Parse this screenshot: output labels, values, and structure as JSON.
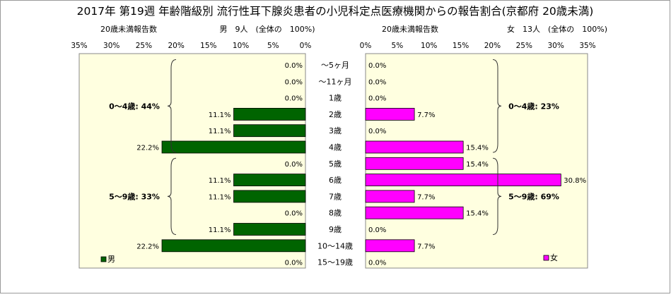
{
  "title": "2017年 第19週 年齢階級別 流行性耳下腺炎患者の小児科定点医療機関からの報告割合(京都府 20歳未満)",
  "chart_data": [
    {
      "type": "bar",
      "orientation": "horizontal",
      "direction": "right-to-left",
      "subtitle_left": "20歳未満報告数",
      "subtitle_right": "男　9人　(全体の　100%)",
      "categories": [
        "～5ヶ月",
        "～11ヶ月",
        "1歳",
        "2歳",
        "3歳",
        "4歳",
        "5歳",
        "6歳",
        "7歳",
        "8歳",
        "9歳",
        "10～14歳",
        "15～19歳"
      ],
      "series": [
        {
          "name": "男",
          "color": "#006400",
          "values": [
            0.0,
            0.0,
            0.0,
            11.1,
            11.1,
            22.2,
            0.0,
            11.1,
            11.1,
            0.0,
            11.1,
            22.2,
            0.0
          ],
          "labels": [
            "0.0%",
            "0.0%",
            "0.0%",
            "11.1%",
            "11.1%",
            "22.2%",
            "0.0%",
            "11.1%",
            "11.1%",
            "0.0%",
            "11.1%",
            "22.2%",
            "0.0%"
          ]
        }
      ],
      "xlim": [
        0,
        35
      ],
      "ticks": [
        "0%",
        "5%",
        "10%",
        "15%",
        "20%",
        "25%",
        "30%",
        "35%"
      ],
      "tick_values": [
        0,
        5,
        10,
        15,
        20,
        25,
        30,
        35
      ],
      "annotations": [
        {
          "text": "0～4歳: 44%",
          "from": 0,
          "to": 5
        },
        {
          "text": "5～9歳: 33%",
          "from": 6,
          "to": 10
        }
      ],
      "plot_background": "#ffffe0"
    },
    {
      "type": "bar",
      "orientation": "horizontal",
      "direction": "left-to-right",
      "subtitle_left": "20歳未満報告数",
      "subtitle_right": "女　13人　(全体の　100%)",
      "categories": [
        "～5ヶ月",
        "～11ヶ月",
        "1歳",
        "2歳",
        "3歳",
        "4歳",
        "5歳",
        "6歳",
        "7歳",
        "8歳",
        "9歳",
        "10～14歳",
        "15～19歳"
      ],
      "series": [
        {
          "name": "女",
          "color": "#ff00ff",
          "values": [
            0.0,
            0.0,
            0.0,
            7.7,
            0.0,
            15.4,
            15.4,
            30.8,
            7.7,
            15.4,
            0.0,
            7.7,
            0.0
          ],
          "labels": [
            "0.0%",
            "0.0%",
            "0.0%",
            "7.7%",
            "0.0%",
            "15.4%",
            "15.4%",
            "30.8%",
            "7.7%",
            "15.4%",
            "0.0%",
            "7.7%",
            "0.0%"
          ]
        }
      ],
      "xlim": [
        0,
        35
      ],
      "ticks": [
        "0%",
        "5%",
        "10%",
        "15%",
        "20%",
        "25%",
        "30%",
        "35%"
      ],
      "tick_values": [
        0,
        5,
        10,
        15,
        20,
        25,
        30,
        35
      ],
      "annotations": [
        {
          "text": "0～4歳: 23%",
          "from": 0,
          "to": 5
        },
        {
          "text": "5～9歳: 69%",
          "from": 6,
          "to": 10
        }
      ],
      "plot_background": "#ffffe0"
    }
  ]
}
